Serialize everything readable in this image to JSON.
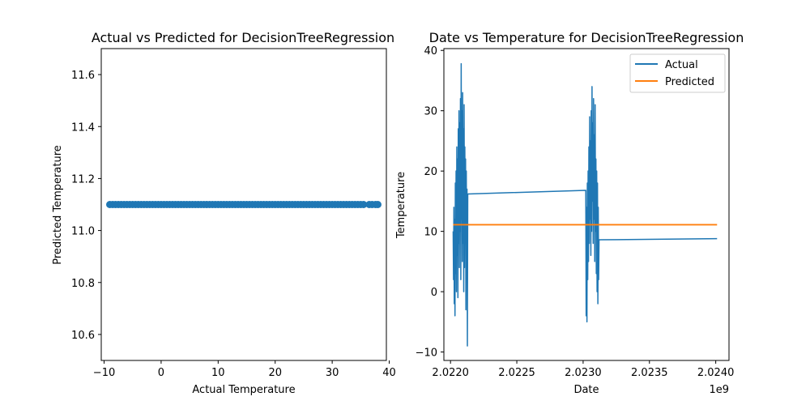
{
  "chart_data": [
    {
      "type": "scatter",
      "title": "Actual vs Predicted for DecisionTreeRegression",
      "xlabel": "Actual Temperature",
      "ylabel": "Predicted Temperature",
      "xlim": [
        -10.5,
        39.5
      ],
      "ylim": [
        10.5,
        11.7
      ],
      "xticks": [
        -10,
        0,
        10,
        20,
        30,
        40
      ],
      "xtick_labels": [
        "−10",
        "0",
        "10",
        "20",
        "30",
        "40"
      ],
      "yticks": [
        10.6,
        10.8,
        11.0,
        11.2,
        11.4,
        11.6
      ],
      "ytick_labels": [
        "10.6",
        "10.8",
        "11.0",
        "11.2",
        "11.4",
        "11.6"
      ],
      "series": [
        {
          "color": "#1f77b4",
          "x": [
            -9,
            -8.5,
            -8,
            -7.5,
            -7,
            -6.5,
            -6,
            -5.5,
            -5,
            -4.5,
            -4,
            -3.5,
            -3,
            -2.5,
            -2,
            -1.5,
            -1,
            -0.5,
            0,
            0.5,
            1,
            1.5,
            2,
            2.5,
            3,
            3.5,
            4,
            4.5,
            5,
            5.5,
            6,
            6.5,
            7,
            7.5,
            8,
            8.5,
            9,
            9.5,
            10,
            10.5,
            11,
            11.5,
            12,
            12.5,
            13,
            13.5,
            14,
            14.5,
            15,
            15.5,
            16,
            16.5,
            17,
            17.5,
            18,
            18.5,
            19,
            19.5,
            20,
            20.5,
            21,
            21.5,
            22,
            22.5,
            23,
            23.5,
            24,
            24.5,
            25,
            25.5,
            26,
            26.5,
            27,
            27.5,
            28,
            28.5,
            29,
            29.5,
            30,
            30.5,
            31,
            31.5,
            32,
            32.5,
            33,
            33.5,
            34,
            34.5,
            35,
            35.5,
            36.5,
            37,
            37.6,
            38
          ],
          "y_constant": 11.1
        }
      ]
    },
    {
      "type": "line",
      "title": "Date vs Temperature for DecisionTreeRegression",
      "xlabel": "Date",
      "ylabel": "Temperature",
      "x_offset_text": "1e9",
      "xlim": [
        2.02195,
        2.0241
      ],
      "ylim": [
        -11.4,
        40.3
      ],
      "xticks": [
        2.022,
        2.0225,
        2.023,
        2.0235,
        2.024
      ],
      "xtick_labels": [
        "2.0220",
        "2.0225",
        "2.0230",
        "2.0235",
        "2.0240"
      ],
      "yticks": [
        -10,
        0,
        10,
        20,
        30,
        40
      ],
      "ytick_labels": [
        "−10",
        "0",
        "10",
        "20",
        "30",
        "40"
      ],
      "legend": {
        "location": "top-right",
        "entries": [
          "Actual",
          "Predicted"
        ]
      },
      "series": [
        {
          "name": "Actual",
          "color": "#1f77b4",
          "segments": [
            {
              "x_start": 2.02202,
              "x_end": 2.02213,
              "y": [
                10,
                2,
                14,
                -2,
                12,
                -4,
                18,
                3,
                20,
                0,
                24,
                6,
                22,
                -1,
                27,
                8,
                30,
                4,
                28,
                10,
                32,
                2,
                37.8,
                12,
                30,
                5,
                33,
                8,
                27,
                0,
                31,
                4,
                24,
                10,
                22,
                -3,
                20,
                2,
                17,
                -9,
                16.2
              ]
            },
            {
              "x": [
                2.02213,
                2.02302
              ],
              "y": [
                16.2,
                16.8
              ]
            },
            {
              "x_start": 2.02302,
              "x_end": 2.02312,
              "y": [
                16.8,
                -4,
                14,
                -5,
                18,
                2,
                20,
                5,
                24,
                8,
                29,
                12,
                25,
                6,
                30,
                10,
                34,
                15,
                28,
                8,
                32,
                12,
                26,
                5,
                31,
                10,
                22,
                3,
                20,
                0,
                18,
                -2,
                14,
                2,
                8.6
              ]
            },
            {
              "x": [
                2.02312,
                2.02401
              ],
              "y": [
                8.6,
                8.8
              ]
            }
          ]
        },
        {
          "name": "Predicted",
          "color": "#ff7f0e",
          "x": [
            2.02202,
            2.02401
          ],
          "y": [
            11.1,
            11.1
          ]
        }
      ]
    }
  ]
}
